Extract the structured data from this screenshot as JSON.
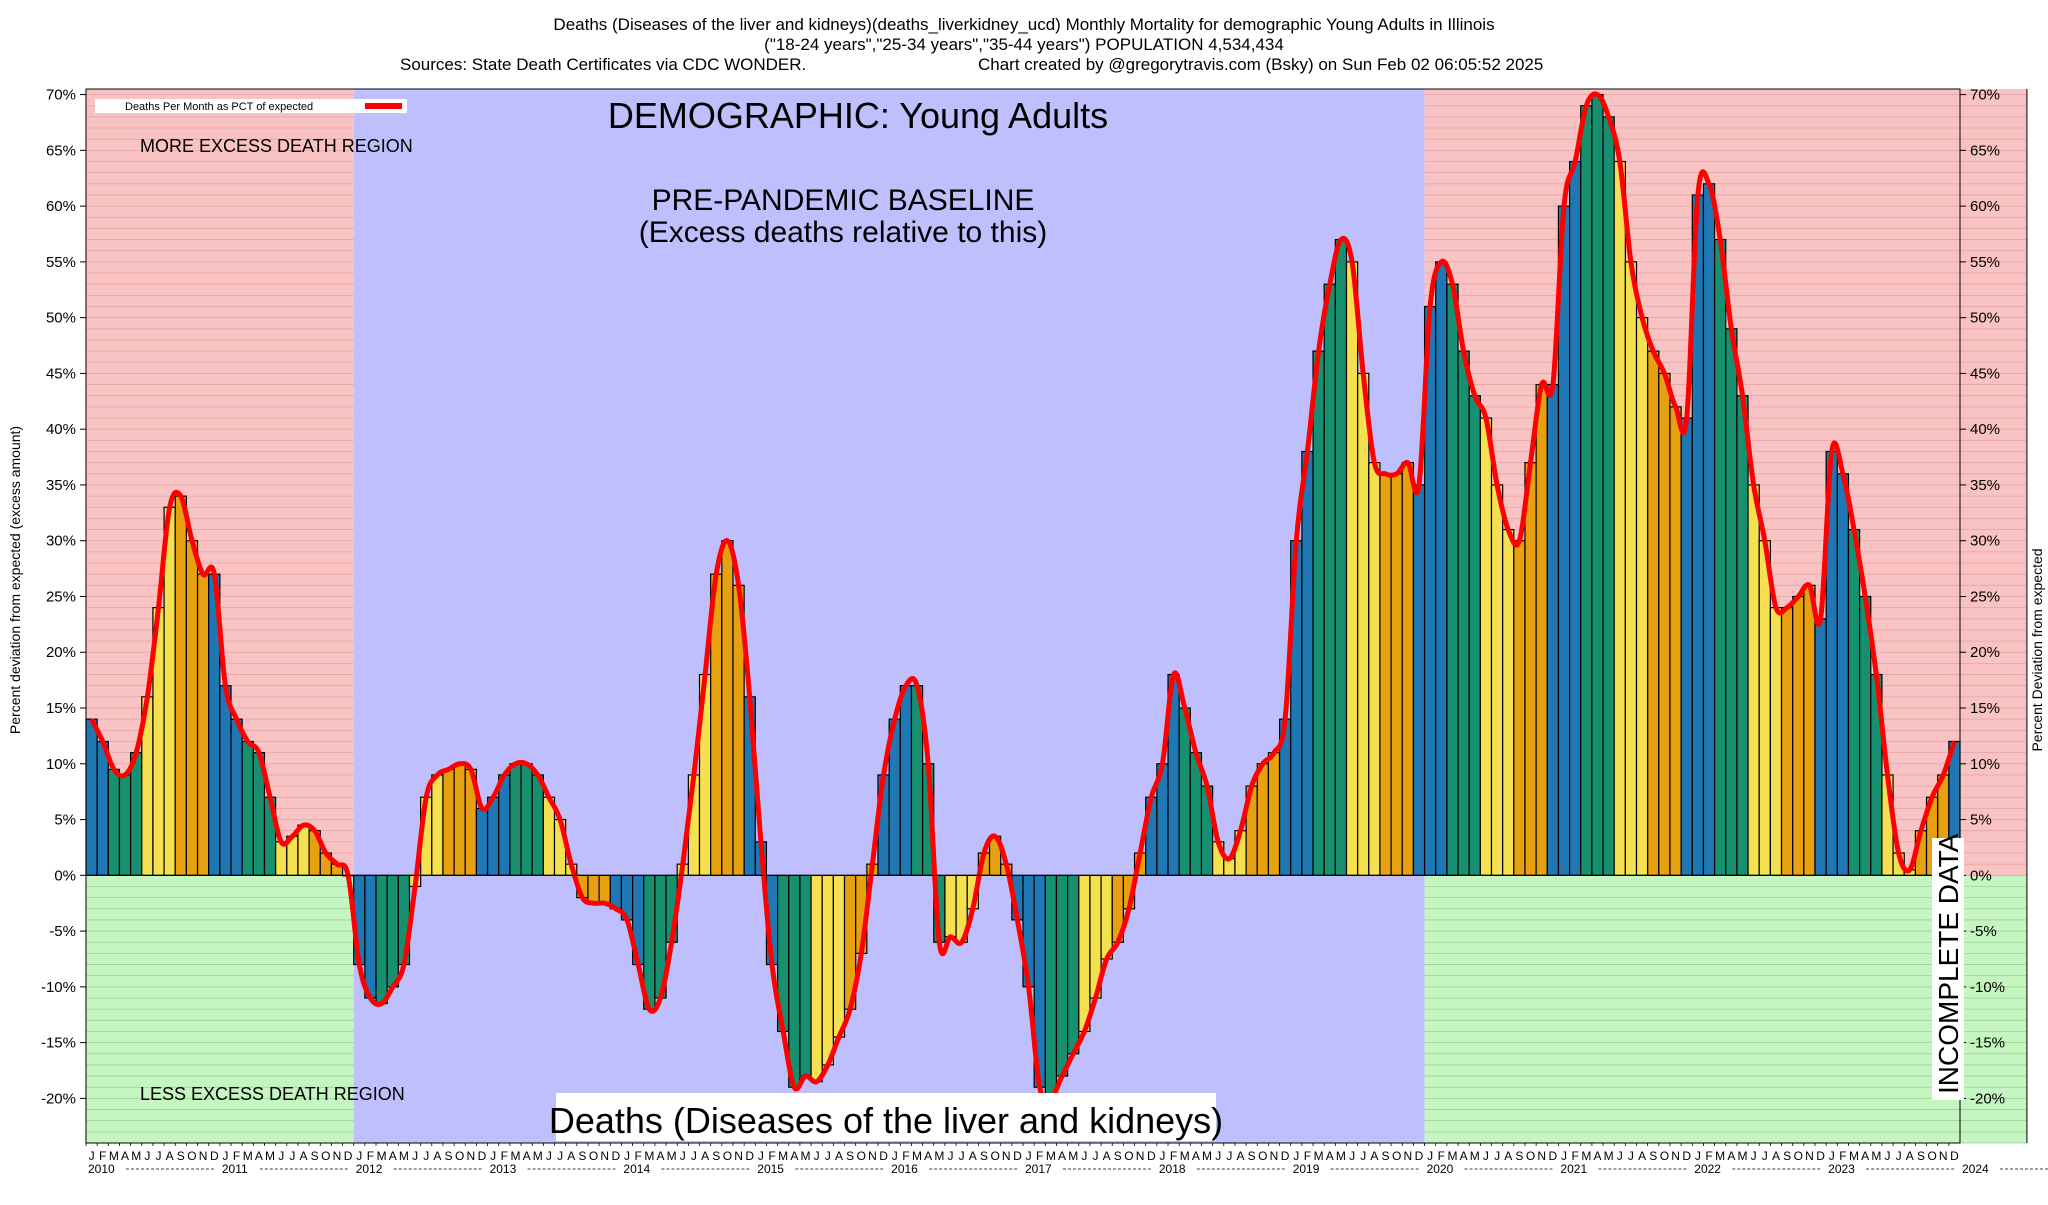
{
  "header": {
    "line1": "Deaths (Diseases of the liver and kidneys)(deaths_liverkidney_ucd) Monthly Mortality for demographic Young Adults in Illinois",
    "line2": "(\"18-24 years\",\"25-34 years\",\"35-44 years\") POPULATION 4,534,434",
    "line3a": "Sources: State Death Certificates via CDC WONDER.",
    "line3b": "Chart created by @gregorytravis.com (Bsky) on Sun Feb 02 06:05:52 2025"
  },
  "annotations": {
    "demographic": "DEMOGRAPHIC: Young Adults",
    "baseline_1": "PRE-PANDEMIC BASELINE",
    "baseline_2": "(Excess deaths relative to this)",
    "more_excess": "MORE EXCESS DEATH REGION",
    "less_excess": "LESS EXCESS DEATH REGION",
    "bottom_title": "Deaths (Diseases of the liver and kidneys)",
    "incomplete": "INCOMPLETE DATA"
  },
  "colors": {
    "red_region": "#f9c3c3",
    "green_region": "#c5f6c1",
    "baseline_region": "#c0bffd",
    "line": "#ff0000",
    "bar_winter": "#1f77b4",
    "bar_spring": "#179070",
    "bar_summer": "#f5e050",
    "bar_fall": "#e6a010",
    "incomplete": "#a86060"
  },
  "chart_data": {
    "type": "bar",
    "ylabel": "Percent deviation from expected (excess amount)",
    "ylabel_right": "Percent Deviation from expected",
    "legend": "Deaths Per Month as PCT of expected",
    "ylim": [
      -24,
      70.5
    ],
    "yticks": [
      70,
      65,
      60,
      55,
      50,
      45,
      40,
      35,
      30,
      25,
      20,
      15,
      10,
      5,
      0,
      -5,
      -10,
      -15,
      -20
    ],
    "month_letters": [
      "J",
      "F",
      "M",
      "A",
      "M",
      "J",
      "J",
      "A",
      "S",
      "O",
      "N",
      "D"
    ],
    "years": [
      "2010",
      "2011",
      "2012",
      "2013",
      "2014",
      "2015",
      "2016",
      "2017",
      "2018",
      "2019",
      "2020",
      "2021",
      "2022",
      "2023",
      "2024"
    ],
    "baseline_start": "2012-01",
    "baseline_end": "2019-12",
    "incomplete_from": "2024-07",
    "start": "2010-01",
    "values": [
      14,
      12,
      9.5,
      9,
      11,
      16,
      24,
      33,
      34,
      30,
      27,
      27,
      17,
      14,
      12,
      11,
      7,
      3,
      3.5,
      4.5,
      4,
      2,
      1,
      0,
      -8,
      -11,
      -11.5,
      -10,
      -8,
      -1,
      7,
      9,
      9.5,
      10,
      9.5,
      6,
      7,
      9,
      10,
      10,
      9,
      7,
      5,
      1,
      -2,
      -2.5,
      -2.5,
      -3,
      -4,
      -8,
      -12,
      -11,
      -6,
      1,
      9,
      18,
      27,
      30,
      26,
      16,
      3,
      -8,
      -14,
      -19,
      -18,
      -18.5,
      -17,
      -14.5,
      -12,
      -7,
      1,
      9,
      14,
      17,
      17,
      10,
      -6,
      -5.5,
      -6,
      -3,
      2,
      3.5,
      1,
      -4,
      -10,
      -19,
      -20,
      -18,
      -16,
      -14,
      -11,
      -7.5,
      -6,
      -3,
      2,
      7,
      10,
      18,
      15,
      11,
      8,
      3,
      1.5,
      4,
      8,
      10,
      11,
      14,
      30,
      38,
      47,
      53,
      57,
      55,
      45,
      37,
      36,
      36,
      37,
      35,
      51,
      55,
      53,
      47,
      43,
      41,
      35,
      31,
      30,
      37,
      44,
      44,
      60,
      64,
      69,
      70,
      68,
      64,
      55,
      50,
      47,
      45,
      42,
      41,
      61,
      62,
      57,
      49,
      43,
      35,
      30,
      24,
      24,
      25,
      26,
      23,
      38,
      36,
      31,
      25,
      18,
      9,
      2,
      0.5,
      4,
      7,
      9,
      12
    ]
  }
}
